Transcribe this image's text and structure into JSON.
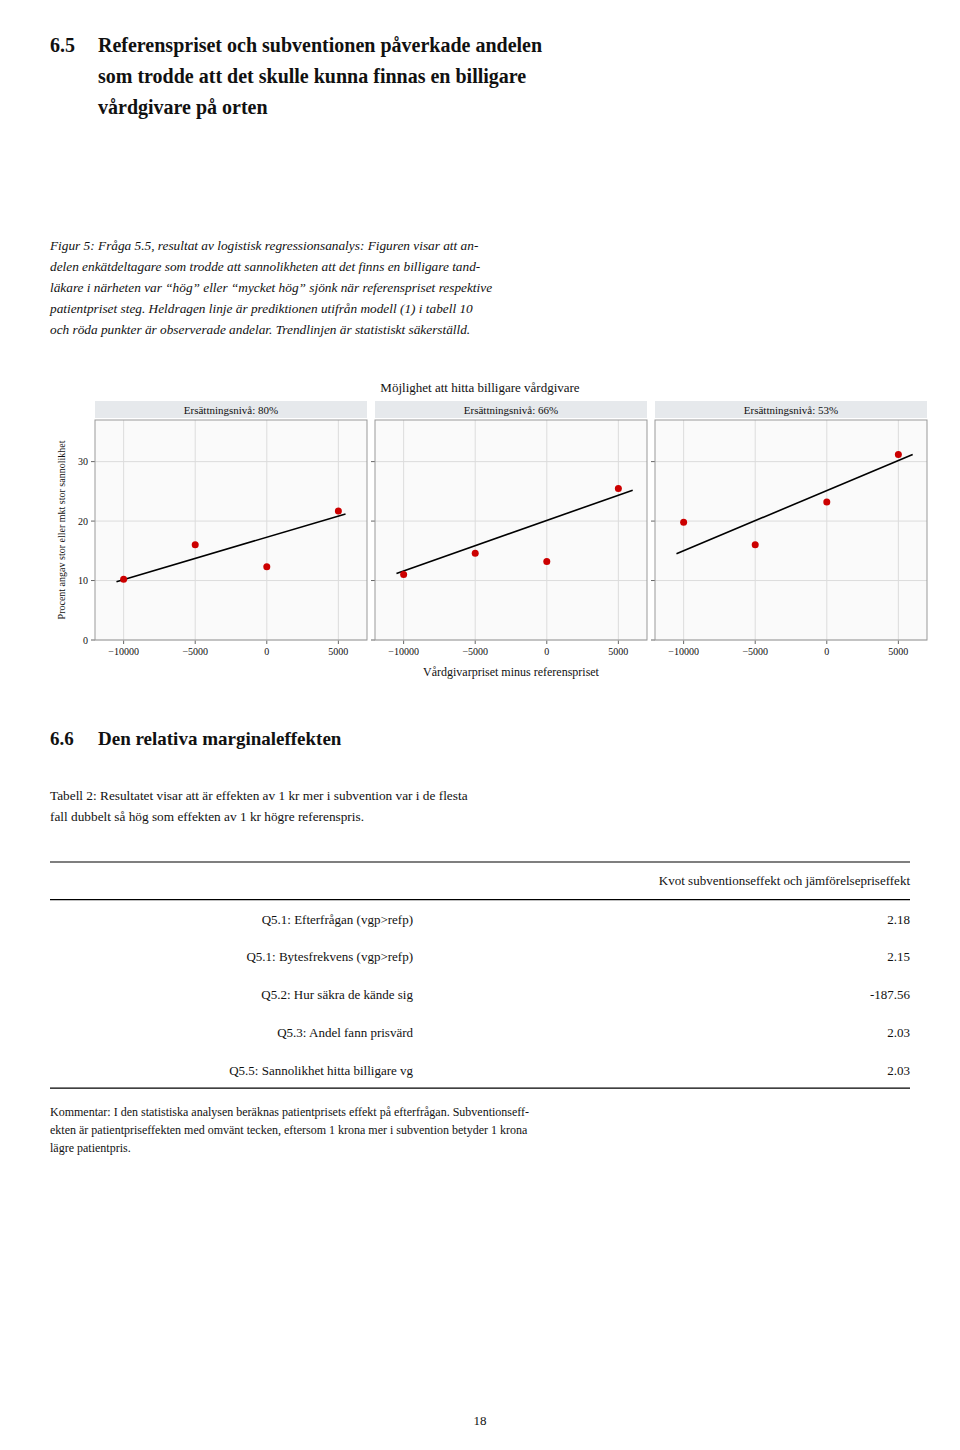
{
  "page": {
    "heading": {
      "number": "6.5",
      "lines": [
        "Referenspriset och subventionen påverkade andelen",
        "som trodde att det skulle kunna finnas en billigare",
        "vårdgivare på orten"
      ]
    },
    "caption": [
      "Figur 5: Fråga 5.5, resultat av logistisk regressionsanalys: Figuren visar att an-",
      "delen enkätdeltagare som trodde att sannolikheten att det finns en billigare tand-",
      "läkare i närheten var “hög” eller “mycket hög” sjönk när referenspriset respektive",
      "patientpriset steg. Heldragen linje är prediktionen utifrån modell (1) i tabell 10",
      "och röda punkter är observerade andelar. Trendlinjen är statistiskt säkerställd."
    ],
    "section": {
      "number": "6.6",
      "text": "Den relativa marginaleffekten"
    },
    "table_caption": [
      "Tabell 2: Resultatet visar att är effekten av 1 kr mer i subvention var i de flesta",
      "fall dubbelt så hög som effekten av 1 kr högre referenspris."
    ],
    "table": {
      "header": "Kvot subventionseffekt och jämförelsepriseffekt",
      "rows": [
        [
          "Q5.1: Efterfrågan (vgp>refp)",
          "2.18"
        ],
        [
          "Q5.1: Bytesfrekvens (vgp>refp)",
          "2.15"
        ],
        [
          "Q5.2: Hur säkra de kände sig",
          "-187.56"
        ],
        [
          "Q5.3: Andel fann prisvärd",
          "2.03"
        ],
        [
          "Q5.5: Sannolikhet hitta billigare vg",
          "2.03"
        ]
      ]
    },
    "comment": [
      "Kommentar: I den statistiska analysen beräknas patientprisets effekt på efterfrågan. Subventionseff-",
      "ekten är patientpriseffekten med omvänt tecken, eftersom 1 krona mer i subvention betyder 1 krona",
      "lägre patientpris."
    ],
    "page_number": "18"
  },
  "chart_group": {
    "title": "Möjlighet att hitta billigare vårdgivare",
    "x_label": "Vårdgivarpriset minus referenspriset",
    "y_label": "Procent angav stor eller mkt stor sannolikhet"
  },
  "chart_data": [
    {
      "type": "scatter",
      "title": "Ersättningsnivå: 80%",
      "xlim": [
        -12000,
        7000
      ],
      "ylim": [
        0,
        37
      ],
      "xticks": [
        {
          "value": -10000,
          "label": "−10000"
        },
        {
          "value": -5000,
          "label": "−5000"
        },
        0,
        5000
      ],
      "yticks": [
        0,
        10,
        20,
        30
      ],
      "grid": true,
      "series": [
        {
          "type": "line",
          "color": "#000000",
          "x": [
            -10500,
            5500
          ],
          "values": [
            9.8,
            21.2
          ]
        },
        {
          "type": "scatter",
          "color": "#cc0000",
          "marker": "circle",
          "x": [
            -10000,
            -5000,
            0,
            5000
          ],
          "values": [
            10.2,
            16.0,
            12.3,
            21.7
          ]
        }
      ]
    },
    {
      "type": "scatter",
      "title": "Ersättningsnivå: 66%",
      "xlim": [
        -12000,
        7000
      ],
      "ylim": [
        0,
        37
      ],
      "xticks": [
        {
          "value": -10000,
          "label": "−10000"
        },
        {
          "value": -5000,
          "label": "−5000"
        },
        0,
        5000
      ],
      "yticks": [
        0,
        10,
        20,
        30
      ],
      "grid": true,
      "tick_labels": "x",
      "series": [
        {
          "type": "line",
          "color": "#000000",
          "x": [
            -10500,
            6000
          ],
          "values": [
            11.2,
            25.2
          ]
        },
        {
          "type": "scatter",
          "color": "#cc0000",
          "marker": "circle",
          "x": [
            -10000,
            -5000,
            0,
            5000
          ],
          "values": [
            11.0,
            14.6,
            13.2,
            25.5
          ]
        }
      ]
    },
    {
      "type": "scatter",
      "title": "Ersättningsnivå: 53%",
      "xlim": [
        -12000,
        7000
      ],
      "ylim": [
        0,
        37
      ],
      "xticks": [
        {
          "value": -10000,
          "label": "−10000"
        },
        {
          "value": -5000,
          "label": "−5000"
        },
        0,
        5000
      ],
      "yticks": [
        0,
        10,
        20,
        30
      ],
      "grid": true,
      "tick_labels": "x",
      "series": [
        {
          "type": "line",
          "color": "#000000",
          "x": [
            -10500,
            6000
          ],
          "values": [
            14.5,
            31.2
          ]
        },
        {
          "type": "scatter",
          "color": "#cc0000",
          "marker": "circle",
          "x": [
            -10000,
            -5000,
            0,
            5000
          ],
          "values": [
            19.8,
            16.0,
            23.2,
            31.2
          ]
        }
      ]
    }
  ]
}
